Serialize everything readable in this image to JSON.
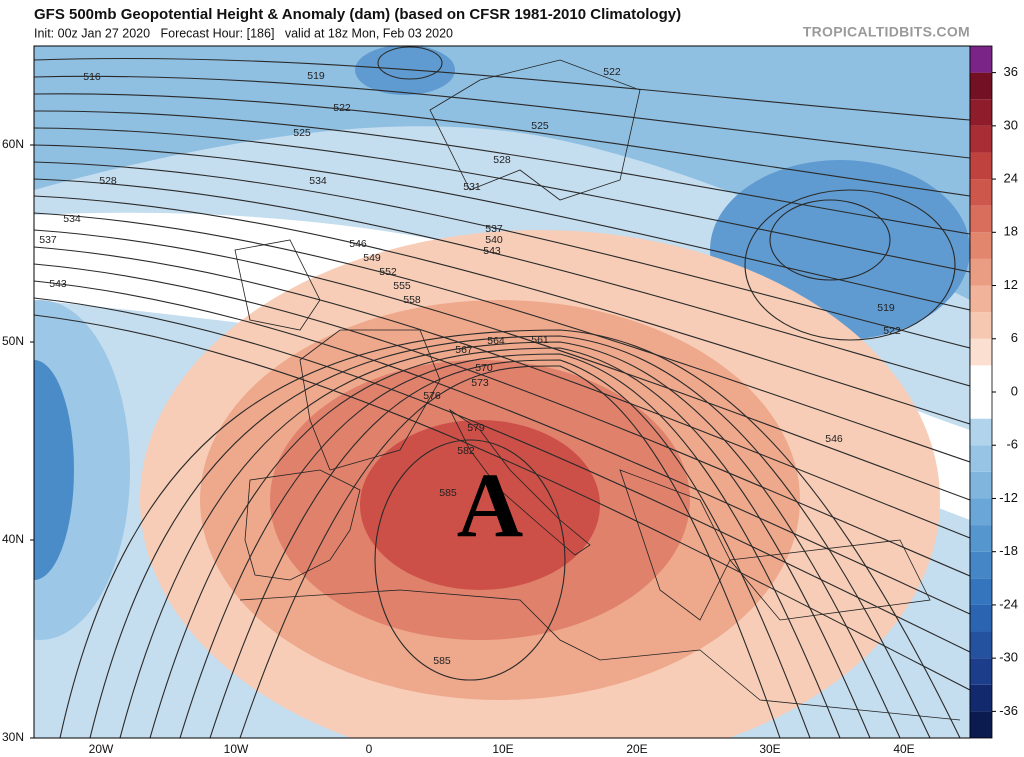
{
  "header": {
    "title": "GFS 500mb Geopotential Height & Anomaly (dam) (based on CFSR 1981-2010 Climatology)",
    "subtitle": "Init: 00z Jan 27 2020   Forecast Hour: [186]   valid at 18z Mon, Feb 03 2020",
    "brand": "TROPICALTIDBITS.COM"
  },
  "map": {
    "lat_labels": [
      "60N",
      "50N",
      "40N",
      "30N"
    ],
    "lon_labels": [
      "20W",
      "10W",
      "0",
      "10E",
      "20E",
      "30E",
      "40E"
    ],
    "high_marker": "A",
    "contour_labels": [
      "516",
      "519",
      "522",
      "525",
      "528",
      "534",
      "537",
      "543",
      "534",
      "546",
      "549",
      "552",
      "555",
      "558",
      "567",
      "564",
      "561",
      "570",
      "573",
      "576",
      "579",
      "582",
      "585",
      "585",
      "522",
      "525",
      "528",
      "531",
      "537",
      "540",
      "543",
      "519",
      "522",
      "546"
    ]
  },
  "colorbar": {
    "lim": [
      -39,
      39
    ],
    "ticks": [
      36,
      30,
      24,
      18,
      12,
      6,
      0,
      -6,
      -12,
      -18,
      -24,
      -30,
      -36
    ],
    "colors": [
      "#0b1a4f",
      "#13296e",
      "#1c3d8a",
      "#24529f",
      "#2b64b0",
      "#3575bd",
      "#4486c6",
      "#5596cf",
      "#6aa6d7",
      "#80b5de",
      "#97c4e5",
      "#b1d4ec",
      "#ffffff",
      "#ffffff",
      "#fbe0d2",
      "#f6c8b2",
      "#f1b39a",
      "#eb9d83",
      "#e2866e",
      "#d96e5c",
      "#cd574b",
      "#bf423f",
      "#a92d35",
      "#8f1c2a",
      "#741023",
      "#7b2487"
    ]
  }
}
